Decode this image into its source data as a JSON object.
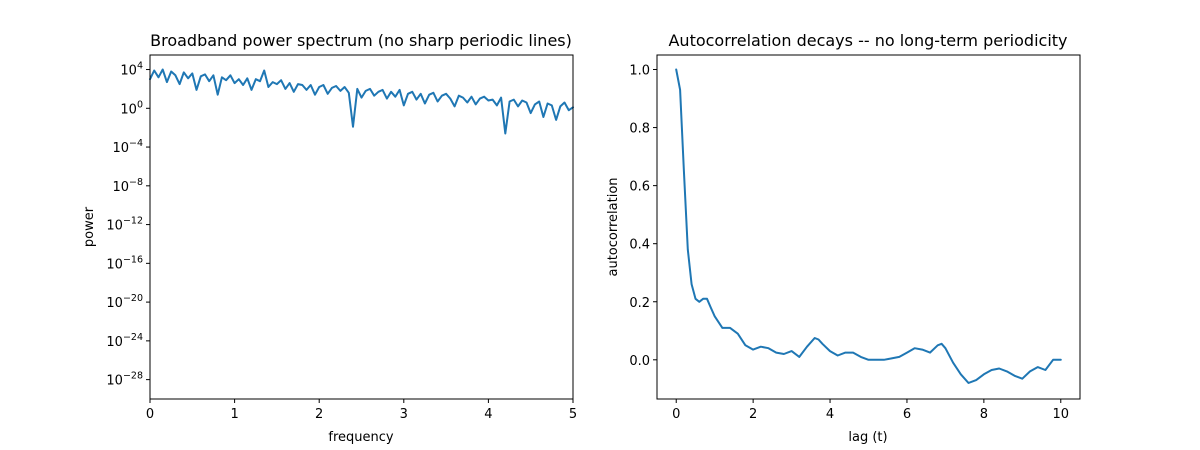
{
  "chart_data": [
    {
      "type": "line",
      "title": "Broadband power spectrum (no sharp periodic lines)",
      "xlabel": "frequency",
      "ylabel": "power",
      "yscale": "log",
      "xlim": [
        0,
        5
      ],
      "ylim_log10": [
        -30,
        5.5
      ],
      "xticks": [
        "0",
        "1",
        "2",
        "3",
        "4",
        "5"
      ],
      "yticks": [
        {
          "base": "10",
          "exp": "4"
        },
        {
          "base": "10",
          "exp": "0"
        },
        {
          "base": "10",
          "exp": "−4"
        },
        {
          "base": "10",
          "exp": "−8"
        },
        {
          "base": "10",
          "exp": "−12"
        },
        {
          "base": "10",
          "exp": "−16"
        },
        {
          "base": "10",
          "exp": "−20"
        },
        {
          "base": "10",
          "exp": "−24"
        },
        {
          "base": "10",
          "exp": "−28"
        }
      ],
      "grid": false,
      "color": "#1f77b4",
      "series": [
        {
          "x": [
            0.0,
            0.05,
            0.1,
            0.15,
            0.2,
            0.25,
            0.3,
            0.35,
            0.4,
            0.45,
            0.5,
            0.55,
            0.6,
            0.65,
            0.7,
            0.75,
            0.8,
            0.85,
            0.9,
            0.95,
            1.0,
            1.05,
            1.1,
            1.15,
            1.2,
            1.25,
            1.3,
            1.35,
            1.4,
            1.45,
            1.5,
            1.55,
            1.6,
            1.65,
            1.7,
            1.75,
            1.8,
            1.85,
            1.9,
            1.95,
            2.0,
            2.05,
            2.1,
            2.15,
            2.2,
            2.25,
            2.3,
            2.35,
            2.4,
            2.45,
            2.5,
            2.55,
            2.6,
            2.65,
            2.7,
            2.75,
            2.8,
            2.85,
            2.9,
            2.95,
            3.0,
            3.05,
            3.1,
            3.15,
            3.2,
            3.25,
            3.3,
            3.35,
            3.4,
            3.45,
            3.5,
            3.55,
            3.6,
            3.65,
            3.7,
            3.75,
            3.8,
            3.85,
            3.9,
            3.95,
            4.0,
            4.05,
            4.1,
            4.15,
            4.2,
            4.25,
            4.3,
            4.35,
            4.4,
            4.45,
            4.5,
            4.55,
            4.6,
            4.65,
            4.7,
            4.75,
            4.8,
            4.85,
            4.9,
            4.95,
            5.0
          ],
          "log10_power": [
            3.0,
            3.9,
            3.2,
            4.0,
            2.7,
            3.8,
            3.4,
            2.5,
            3.7,
            3.1,
            3.6,
            1.9,
            3.3,
            3.5,
            2.8,
            3.4,
            1.4,
            3.2,
            2.9,
            3.4,
            2.6,
            3.0,
            2.4,
            3.1,
            1.9,
            3.0,
            2.8,
            3.9,
            2.2,
            2.7,
            2.5,
            2.9,
            2.0,
            2.6,
            1.7,
            2.5,
            2.4,
            1.9,
            2.4,
            1.4,
            2.2,
            2.4,
            1.5,
            2.1,
            2.3,
            1.8,
            2.2,
            1.6,
            -1.9,
            2.0,
            1.1,
            1.8,
            2.0,
            1.3,
            1.7,
            1.9,
            1.0,
            1.7,
            1.2,
            1.9,
            0.3,
            1.5,
            1.7,
            0.9,
            1.5,
            0.5,
            1.4,
            1.6,
            0.7,
            1.3,
            1.5,
            1.0,
            0.2,
            1.3,
            1.1,
            0.6,
            1.2,
            0.4,
            1.0,
            1.2,
            0.8,
            0.9,
            0.3,
            1.1,
            -2.6,
            0.7,
            0.9,
            0.2,
            0.8,
            0.6,
            -0.5,
            0.4,
            0.7,
            -0.9,
            0.5,
            0.3,
            -1.2,
            0.2,
            0.6,
            -0.2,
            0.1
          ]
        }
      ]
    },
    {
      "type": "line",
      "title": "Autocorrelation decays -- no long-term periodicity",
      "xlabel": "lag (t)",
      "ylabel": "autocorrelation",
      "xlim": [
        -0.5,
        10.5
      ],
      "ylim": [
        -0.135,
        1.05
      ],
      "xticks": [
        "0",
        "2",
        "4",
        "6",
        "8",
        "10"
      ],
      "yticks": [
        "0.0",
        "0.2",
        "0.4",
        "0.6",
        "0.8",
        "1.0"
      ],
      "grid": false,
      "color": "#1f77b4",
      "series": [
        {
          "x": [
            0.0,
            0.1,
            0.2,
            0.3,
            0.4,
            0.5,
            0.6,
            0.7,
            0.8,
            0.9,
            1.0,
            1.2,
            1.4,
            1.6,
            1.8,
            2.0,
            2.2,
            2.4,
            2.6,
            2.8,
            3.0,
            3.2,
            3.4,
            3.6,
            3.7,
            3.8,
            4.0,
            4.2,
            4.4,
            4.6,
            4.8,
            5.0,
            5.2,
            5.4,
            5.6,
            5.8,
            6.0,
            6.2,
            6.4,
            6.6,
            6.8,
            6.9,
            7.0,
            7.2,
            7.4,
            7.6,
            7.8,
            8.0,
            8.2,
            8.4,
            8.6,
            8.8,
            9.0,
            9.2,
            9.4,
            9.6,
            9.8,
            10.0
          ],
          "y": [
            1.0,
            0.93,
            0.65,
            0.38,
            0.26,
            0.21,
            0.2,
            0.21,
            0.21,
            0.18,
            0.15,
            0.11,
            0.11,
            0.09,
            0.05,
            0.035,
            0.045,
            0.04,
            0.025,
            0.02,
            0.03,
            0.01,
            0.045,
            0.075,
            0.07,
            0.055,
            0.03,
            0.015,
            0.025,
            0.025,
            0.01,
            0.0,
            0.0,
            0.0,
            0.005,
            0.01,
            0.025,
            0.04,
            0.035,
            0.025,
            0.05,
            0.055,
            0.04,
            -0.01,
            -0.05,
            -0.08,
            -0.07,
            -0.05,
            -0.035,
            -0.03,
            -0.04,
            -0.055,
            -0.065,
            -0.04,
            -0.025,
            -0.035,
            0.0,
            0.0
          ]
        }
      ]
    }
  ]
}
